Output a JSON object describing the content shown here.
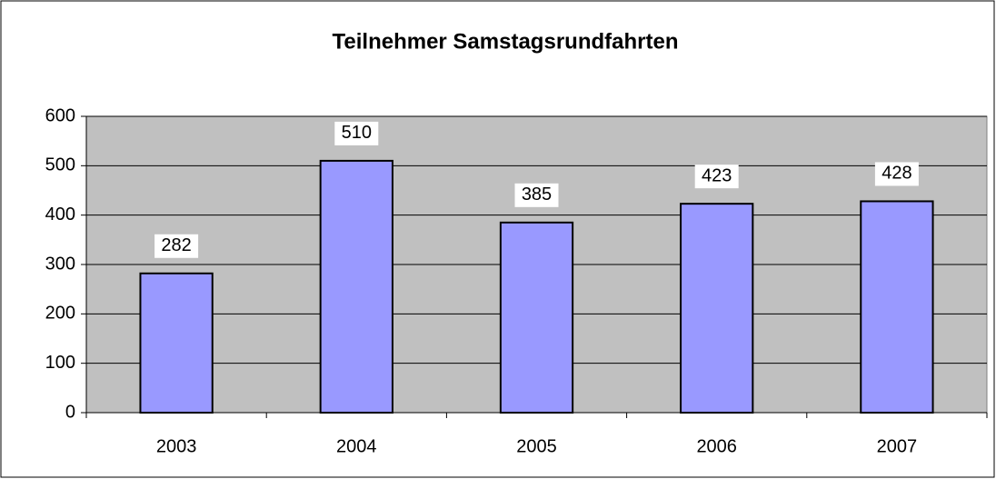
{
  "chart_data": {
    "type": "bar",
    "title": "Teilnehmer Samstagsrundfahrten",
    "categories": [
      "2003",
      "2004",
      "2005",
      "2006",
      "2007"
    ],
    "values": [
      282,
      510,
      385,
      423,
      428
    ],
    "color": "#9999ff",
    "ylim": [
      0,
      600
    ],
    "yticks": [
      0,
      100,
      200,
      300,
      400,
      500,
      600
    ],
    "grid": true
  }
}
